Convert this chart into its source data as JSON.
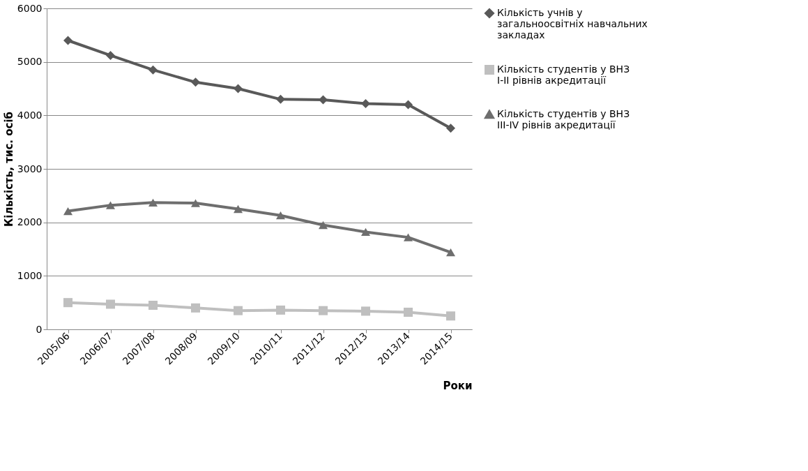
{
  "chart_data": {
    "type": "line",
    "xlabel": "Роки",
    "ylabel": "Кількість, тис. осіб",
    "categories": [
      "2005/06",
      "2006/07",
      "2007/08",
      "2008/09",
      "2009/10",
      "2010/11",
      "2011/12",
      "2012/13",
      "2013/14",
      "2014/15"
    ],
    "series": [
      {
        "name": "Кількість учнів у загальноосвітніх навчальних закладах",
        "color": "#595959",
        "marker": "diamond",
        "values": [
          5400,
          5120,
          4850,
          4620,
          4500,
          4300,
          4290,
          4220,
          4200,
          3760
        ]
      },
      {
        "name": "Кількість студентів у ВНЗ І-ІІ рівнів акредитації",
        "color": "#bfbfbf",
        "marker": "square",
        "values": [
          500,
          470,
          450,
          400,
          350,
          360,
          350,
          340,
          320,
          250
        ]
      },
      {
        "name": "Кількість студентів у ВНЗ ІІІ-IV рівнів акредитації",
        "color": "#6e6e6e",
        "marker": "triangle",
        "values": [
          2210,
          2320,
          2370,
          2360,
          2250,
          2130,
          1950,
          1820,
          1720,
          1440
        ]
      }
    ],
    "ylim": [
      0,
      6000
    ],
    "yticks": [
      0,
      1000,
      2000,
      3000,
      4000,
      5000,
      6000
    ],
    "grid": "y",
    "legend": "right",
    "line_style": "solid"
  }
}
